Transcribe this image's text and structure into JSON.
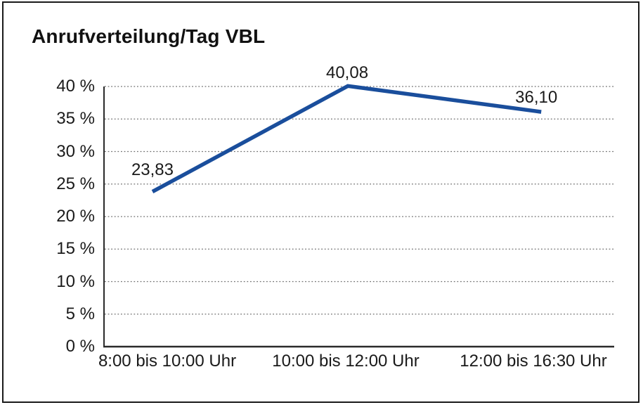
{
  "frame": {
    "background_color": "#ffffff",
    "border_color": "#1a1a1a"
  },
  "chart_data": {
    "type": "line",
    "title": "Anrufverteilung/Tag VBL",
    "categories": [
      "8:00 bis 10:00 Uhr",
      "10:00 bis 12:00 Uhr",
      "12:00 bis 16:30 Uhr"
    ],
    "series": [
      {
        "name": "Anrufverteilung/Tag VBL",
        "values": [
          23.83,
          40.08,
          36.1
        ]
      }
    ],
    "data_labels": [
      "23,83",
      "40,08",
      "36,10"
    ],
    "y_tick_labels": [
      "0 %",
      "5 %",
      "10 %",
      "15 %",
      "20 %",
      "25 %",
      "30 %",
      "35 %",
      "40 %"
    ],
    "ylim": [
      0,
      40
    ],
    "y_tick_step": 5,
    "xlabel": "",
    "ylabel": "",
    "grid": "horizontal dotted",
    "legend": "none",
    "line_color": "#1a4e9c",
    "text_color": "#1a1a1a",
    "grid_color": "#6e6e6e",
    "axis_color": "#2a2a2a"
  }
}
